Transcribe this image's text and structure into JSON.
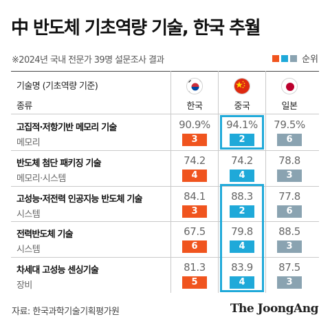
{
  "title": "中 반도체 기초역량 기술, 한국 추월",
  "subtitle": "※2024년 국내 전문가 39명 설문조사 결과",
  "legend": {
    "label": "순위"
  },
  "header": {
    "tech_col": "기술명 (기초역량 기준)",
    "cat_col": "종류"
  },
  "colors": {
    "korea_rank": "#f0541e",
    "china_rank": "#1fa9d9",
    "japan_rank": "#8aa3b1",
    "highlight": "#1fa9d9",
    "value_text": "#666666"
  },
  "source": "자료: 한국과학기술기획평가원",
  "brand": "The JoongAng",
  "chart_data": {
    "type": "table",
    "countries": [
      {
        "name": "한국",
        "flag": "south-korea-flag-icon"
      },
      {
        "name": "중국",
        "flag": "china-flag-icon"
      },
      {
        "name": "일본",
        "flag": "japan-flag-icon"
      }
    ],
    "rows": [
      {
        "tech": "고집적·저항기반 메모리 기술",
        "category": "메모리",
        "values": [
          "90.9%",
          "94.1%",
          "79.5%"
        ],
        "ranks": [
          "3",
          "2",
          "6"
        ]
      },
      {
        "tech": "반도체 첨단 패키징 기술",
        "category": "메모리·시스템",
        "values": [
          "74.2",
          "74.2",
          "78.8"
        ],
        "ranks": [
          "4",
          "4",
          "3"
        ]
      },
      {
        "tech": "고성능·저전력 인공지능 반도체 기술",
        "category": "시스템",
        "values": [
          "84.1",
          "88.3",
          "77.8"
        ],
        "ranks": [
          "3",
          "2",
          "6"
        ]
      },
      {
        "tech": "전력반도체 기술",
        "category": "시스템",
        "values": [
          "67.5",
          "79.8",
          "88.5"
        ],
        "ranks": [
          "6",
          "4",
          "3"
        ]
      },
      {
        "tech": "차세대 고성능 센싱기술",
        "category": "장비",
        "values": [
          "81.3",
          "83.9",
          "87.5"
        ],
        "ranks": [
          "5",
          "4",
          "3"
        ]
      }
    ],
    "highlighted_column": "중국"
  }
}
